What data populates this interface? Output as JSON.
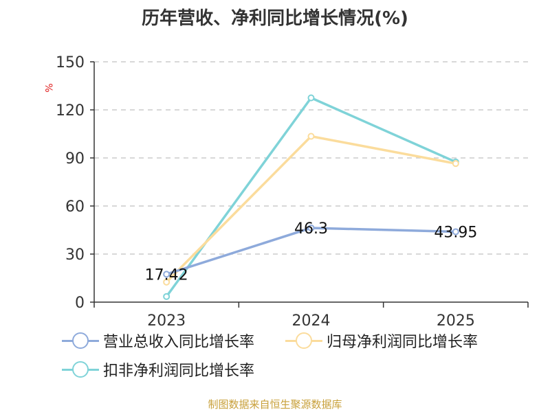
{
  "title": "历年营收、净利同比增长情况(%)",
  "unit_label": "%",
  "footer": "制图数据来自恒生聚源数据库",
  "chart_data": {
    "type": "line",
    "categories": [
      "2023",
      "2024",
      "2025"
    ],
    "ylim": [
      0,
      150
    ],
    "yticks": [
      0,
      30,
      60,
      90,
      120,
      150
    ],
    "grid": true,
    "legend_position": "bottom-left",
    "series": [
      {
        "name": "营业总收入同比增长率",
        "color": "#8eaadb",
        "values": [
          17.42,
          46.3,
          43.95
        ],
        "labels": [
          "17.42",
          "46.3",
          "43.95"
        ]
      },
      {
        "name": "归母净利润同比增长率",
        "color": "#fbdc9c",
        "values": [
          12.5,
          103.5,
          86.5
        ],
        "labels": []
      },
      {
        "name": "扣非净利润同比增长率",
        "color": "#7fd3d8",
        "values": [
          3.5,
          127.5,
          87.5
        ],
        "labels": []
      }
    ]
  }
}
